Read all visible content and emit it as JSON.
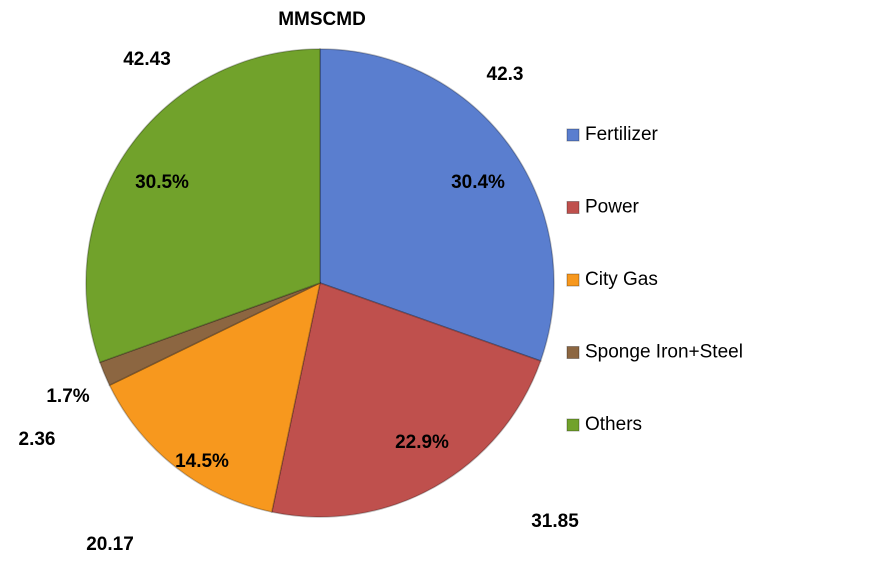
{
  "chart_data": {
    "type": "pie",
    "title": "MMSCMD",
    "categories": [
      "Fertilizer",
      "Power",
      "City Gas",
      "Sponge Iron+Steel",
      "Others"
    ],
    "values": [
      42.3,
      31.85,
      20.17,
      2.36,
      42.43
    ],
    "percent_labels": [
      "30.4%",
      "22.9%",
      "14.5%",
      "1.7%",
      "30.5%"
    ],
    "colors": [
      "#5a7ecf",
      "#bf504d",
      "#f7981e",
      "#8c6641",
      "#71a22b"
    ],
    "legend": "right"
  }
}
